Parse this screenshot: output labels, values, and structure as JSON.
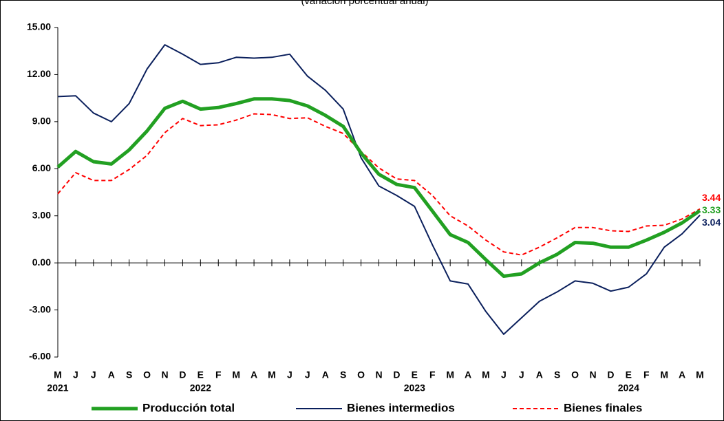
{
  "chart_data": {
    "type": "line",
    "subtitle": "(variación porcentual anual)",
    "categories": [
      "M",
      "J",
      "J",
      "A",
      "S",
      "O",
      "N",
      "D",
      "E",
      "F",
      "M",
      "A",
      "M",
      "J",
      "J",
      "A",
      "S",
      "O",
      "N",
      "D",
      "E",
      "F",
      "M",
      "A",
      "M",
      "J",
      "J",
      "A",
      "S",
      "O",
      "N",
      "D",
      "E",
      "F",
      "M",
      "A",
      "M"
    ],
    "year_labels": [
      "2021",
      null,
      null,
      null,
      null,
      null,
      null,
      null,
      "2022",
      null,
      null,
      null,
      null,
      null,
      null,
      null,
      null,
      null,
      null,
      null,
      "2023",
      null,
      null,
      null,
      null,
      null,
      null,
      null,
      null,
      null,
      null,
      null,
      "2024",
      null,
      null,
      null,
      null
    ],
    "ylim": [
      -6,
      15
    ],
    "yticks": [
      {
        "value": -6,
        "label": "-6.00"
      },
      {
        "value": -3,
        "label": "-3.00"
      },
      {
        "value": 0,
        "label": "0.00"
      },
      {
        "value": 3,
        "label": "3.00"
      },
      {
        "value": 6,
        "label": "6.00"
      },
      {
        "value": 9,
        "label": "9.00"
      },
      {
        "value": 12,
        "label": "12.00"
      },
      {
        "value": 15,
        "label": "15.00"
      }
    ],
    "series": [
      {
        "name": "Producción total",
        "color": "#22a022",
        "width": 5,
        "dash": "solid",
        "end_label": "3.33",
        "values": [
          6.1,
          7.1,
          6.45,
          6.3,
          7.2,
          8.4,
          9.85,
          10.3,
          9.8,
          9.9,
          10.15,
          10.45,
          10.45,
          10.35,
          10.0,
          9.4,
          8.7,
          7.0,
          5.65,
          5.0,
          4.8,
          3.3,
          1.8,
          1.3,
          0.2,
          -0.85,
          -0.7,
          0.0,
          0.55,
          1.3,
          1.25,
          1.0,
          1.0,
          1.45,
          1.95,
          2.55,
          3.33
        ]
      },
      {
        "name": "Bienes intermedios",
        "color": "#0a1f5c",
        "width": 2,
        "dash": "solid",
        "end_label": "3.04",
        "values": [
          10.6,
          10.65,
          9.55,
          9.0,
          10.15,
          12.35,
          13.9,
          13.3,
          12.65,
          12.75,
          13.1,
          13.05,
          13.1,
          13.3,
          11.9,
          11.0,
          9.8,
          6.7,
          4.9,
          4.3,
          3.6,
          1.15,
          -1.15,
          -1.35,
          -3.1,
          -4.55,
          -3.5,
          -2.45,
          -1.85,
          -1.15,
          -1.3,
          -1.8,
          -1.55,
          -0.7,
          1.0,
          1.85,
          3.04
        ]
      },
      {
        "name": "Bienes finales",
        "color": "#ff0000",
        "width": 2,
        "dash": "dashed",
        "end_label": "3.44",
        "values": [
          4.4,
          5.75,
          5.25,
          5.25,
          5.95,
          6.85,
          8.3,
          9.2,
          8.75,
          8.8,
          9.1,
          9.5,
          9.45,
          9.2,
          9.25,
          8.7,
          8.25,
          7.1,
          6.05,
          5.35,
          5.25,
          4.3,
          3.0,
          2.35,
          1.45,
          0.7,
          0.5,
          1.0,
          1.6,
          2.25,
          2.25,
          2.05,
          2.0,
          2.35,
          2.4,
          2.8,
          3.44
        ]
      }
    ]
  }
}
